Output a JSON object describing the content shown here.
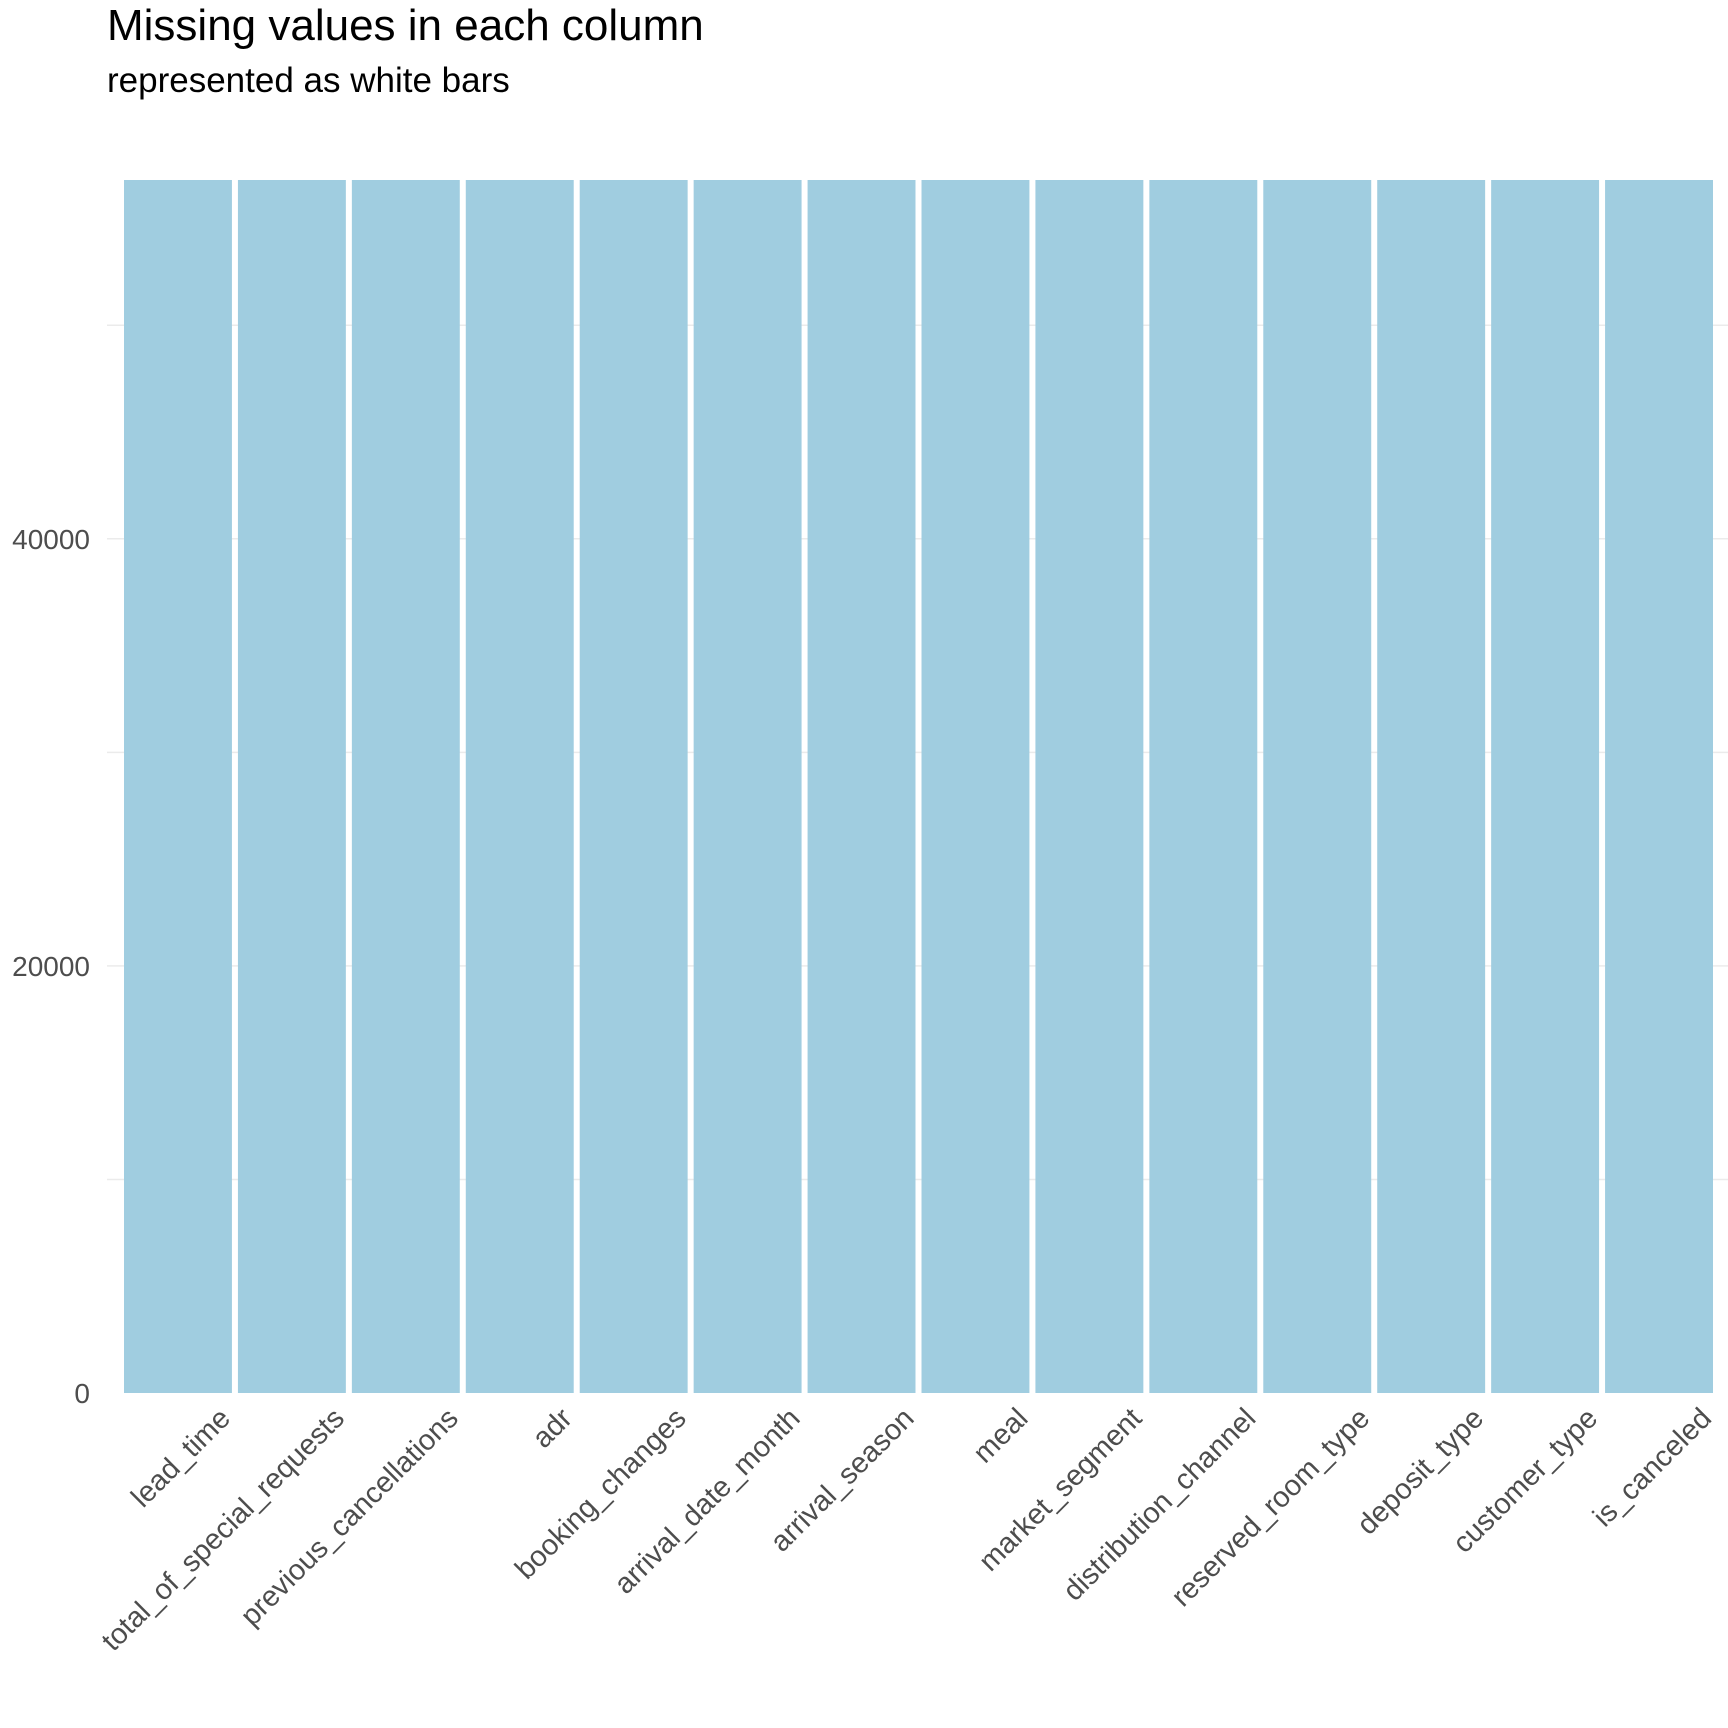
{
  "chart_data": {
    "type": "bar",
    "title": "Missing values in each column",
    "subtitle": "represented as white bars",
    "xlabel": "",
    "ylabel": "",
    "categories": [
      "lead_time",
      "total_of_special_requests",
      "previous_cancellations",
      "adr",
      "booking_changes",
      "arrival_date_month",
      "arrival_season",
      "meal",
      "market_segment",
      "distribution_channel",
      "reserved_room_type",
      "deposit_type",
      "customer_type",
      "is_canceled"
    ],
    "series": [
      {
        "values": [
          56800,
          56800,
          56800,
          56800,
          56800,
          56800,
          56800,
          56800,
          56800,
          56800,
          56800,
          56800,
          56800,
          56800
        ]
      }
    ],
    "missing_values": [
      0,
      0,
      0,
      0,
      0,
      0,
      0,
      0,
      0,
      0,
      0,
      0,
      0,
      0
    ],
    "ylim": [
      0,
      56800
    ],
    "yticks": [
      0,
      20000,
      40000
    ],
    "grid": true,
    "legend": "none",
    "colors": {
      "present": "#a0cde0",
      "missing": "#ffffff",
      "grid": "#ebebeb",
      "tick_label": "#4d4d4d"
    }
  }
}
